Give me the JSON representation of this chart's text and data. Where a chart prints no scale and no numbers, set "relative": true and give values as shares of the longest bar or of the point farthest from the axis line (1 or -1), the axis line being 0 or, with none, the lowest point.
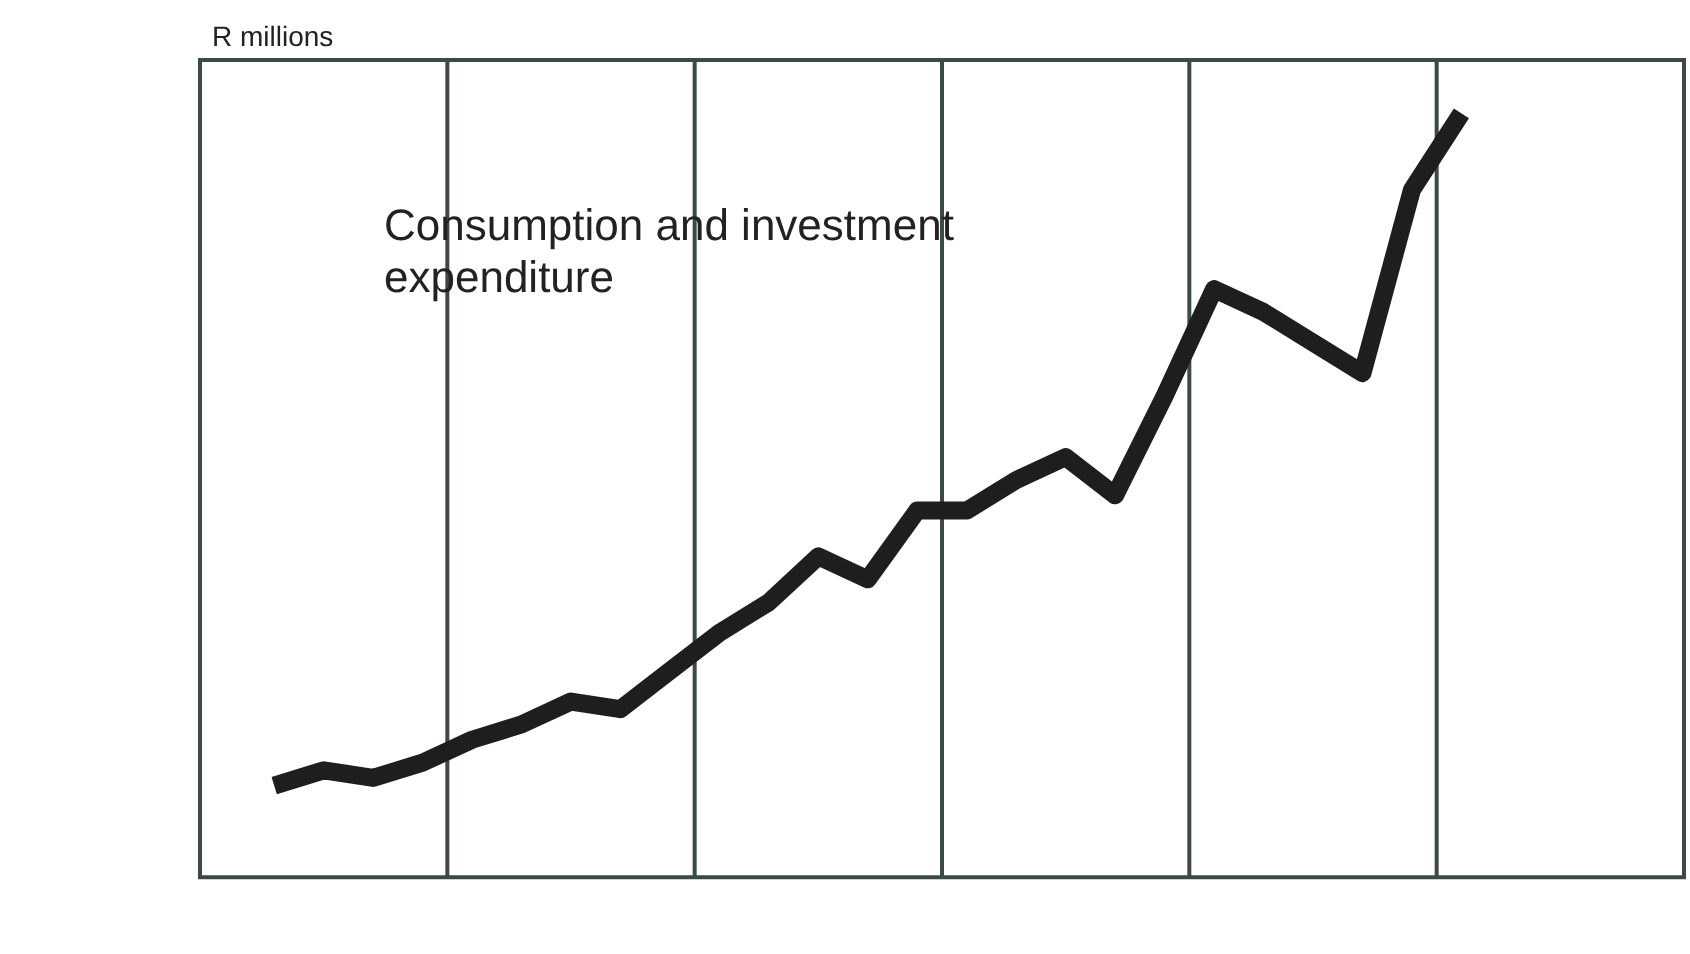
{
  "chart_data": {
    "type": "line",
    "relative": true,
    "ylabel": "R millions",
    "annotations": [
      "Consumption and investment expenditure"
    ],
    "categories": [
      null,
      null,
      null,
      null,
      null,
      null,
      null,
      null,
      null,
      null,
      null,
      null,
      null,
      null,
      null,
      null,
      null,
      null,
      null,
      null,
      null,
      null,
      null,
      null,
      null,
      null,
      null,
      null,
      null,
      null
    ],
    "series": [
      {
        "color": "#1e1e1e",
        "values": [
          null,
          0.12,
          0.14,
          0.13,
          0.15,
          0.18,
          0.2,
          0.23,
          0.22,
          0.27,
          0.32,
          0.36,
          0.42,
          0.39,
          0.48,
          0.48,
          0.52,
          0.55,
          0.5,
          0.63,
          0.77,
          0.74,
          0.7,
          0.66,
          0.9,
          1,
          null,
          null,
          null,
          null
        ]
      }
    ],
    "grid": "x",
    "legend": false,
    "marker": "none",
    "line_style": "solid"
  }
}
